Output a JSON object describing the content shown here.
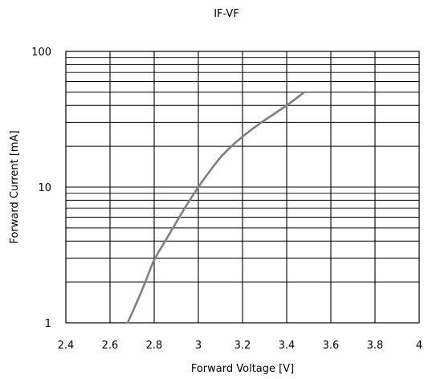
{
  "chart_data": {
    "type": "line",
    "title": "IF-VF",
    "xlabel": "Forward Voltage [V]",
    "ylabel": "Forward Current [mA]",
    "xlim": [
      2.4,
      4.0
    ],
    "ylim": [
      1,
      100
    ],
    "yscale": "log",
    "grid": true,
    "x_ticks": [
      2.4,
      2.6,
      2.8,
      3.0,
      3.2,
      3.4,
      3.6,
      3.8,
      4.0
    ],
    "x_tick_labels": [
      "2.4",
      "2.6",
      "2.8",
      "3",
      "3.2",
      "3.4",
      "3.6",
      "3.8",
      "4"
    ],
    "y_ticks": [
      1,
      10,
      100
    ],
    "y_tick_labels": [
      "1",
      "10",
      "100"
    ],
    "line_color": "#808080",
    "series": [
      {
        "x": [
          2.68,
          2.72,
          2.76,
          2.8,
          2.85,
          2.9,
          2.95,
          3.0,
          3.05,
          3.1,
          3.15,
          3.2,
          3.28,
          3.4,
          3.48
        ],
        "y": [
          1.0,
          1.4,
          2.0,
          2.9,
          4.0,
          5.5,
          7.5,
          10.0,
          13.0,
          16.5,
          20.0,
          23.5,
          29.5,
          40.0,
          50.0
        ]
      }
    ]
  }
}
